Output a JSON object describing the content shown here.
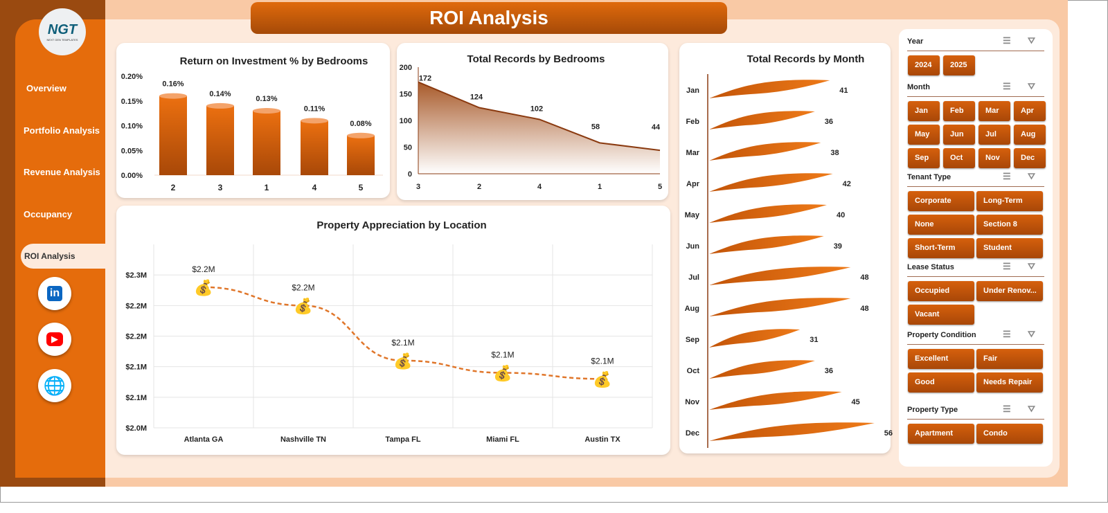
{
  "header": {
    "title": "ROI Analysis"
  },
  "logo": {
    "text": "NGT",
    "sub": "NEXT GEN TEMPLATES"
  },
  "sidebar": {
    "items": [
      {
        "label": "Overview"
      },
      {
        "label": "Portfolio Analysis"
      },
      {
        "label": "Revenue Analysis"
      },
      {
        "label": "Occupancy"
      },
      {
        "label": "ROI Analysis",
        "active": true
      }
    ],
    "social": [
      {
        "icon": "linkedin-icon",
        "label": "in",
        "color": "#0a66c2"
      },
      {
        "icon": "youtube-icon",
        "label": "▶",
        "color": "#ff0000"
      },
      {
        "icon": "globe-icon",
        "label": "🌐",
        "color": "#1e88e5"
      }
    ]
  },
  "colors": {
    "accent": "#e56c0c",
    "dark": "#9a4a10"
  },
  "chart_data": [
    {
      "type": "bar",
      "title": "Return on Investment % by Bedrooms",
      "categories": [
        "2",
        "3",
        "1",
        "4",
        "5"
      ],
      "values": [
        0.16,
        0.14,
        0.13,
        0.11,
        0.08
      ],
      "labels": [
        "0.16%",
        "0.14%",
        "0.13%",
        "0.11%",
        "0.08%"
      ],
      "yticks": [
        "0.00%",
        "0.05%",
        "0.10%",
        "0.15%",
        "0.20%"
      ],
      "ylim": [
        0,
        0.2
      ]
    },
    {
      "type": "area",
      "title": "Total Records by Bedrooms",
      "categories": [
        "3",
        "2",
        "4",
        "1",
        "5"
      ],
      "values": [
        172,
        124,
        102,
        58,
        44
      ],
      "yticks": [
        "0",
        "50",
        "100",
        "150",
        "200"
      ],
      "ylim": [
        0,
        200
      ]
    },
    {
      "type": "line",
      "title": "Property Appreciation by Location",
      "categories": [
        "Atlanta GA",
        "Nashville TN",
        "Tampa FL",
        "Miami FL",
        "Austin TX"
      ],
      "values": [
        2.23,
        2.2,
        2.11,
        2.09,
        2.08
      ],
      "labels": [
        "$2.2M",
        "$2.2M",
        "$2.1M",
        "$2.1M",
        "$2.1M"
      ],
      "yticks": [
        "$2.0M",
        "$2.1M",
        "$2.1M",
        "$2.2M",
        "$2.2M",
        "$2.3M"
      ],
      "ylim": [
        2.0,
        2.3
      ],
      "grid": true,
      "marker": "money-bag-icon"
    },
    {
      "type": "bar",
      "orientation": "horizontal",
      "title": "Total Records by Month",
      "categories": [
        "Jan",
        "Feb",
        "Mar",
        "Apr",
        "May",
        "Jun",
        "Jul",
        "Aug",
        "Sep",
        "Oct",
        "Nov",
        "Dec"
      ],
      "values": [
        41,
        36,
        38,
        42,
        40,
        39,
        48,
        48,
        31,
        36,
        45,
        56
      ]
    }
  ],
  "slicers": [
    {
      "title": "Year",
      "items": [
        "2024",
        "2025"
      ],
      "cols": 4
    },
    {
      "title": "Month",
      "items": [
        "Jan",
        "Feb",
        "Mar",
        "Apr",
        "May",
        "Jun",
        "Jul",
        "Aug",
        "Sep",
        "Oct",
        "Nov",
        "Dec"
      ],
      "cols": 4
    },
    {
      "title": "Tenant Type",
      "items": [
        "Corporate",
        "Long-Term",
        "None",
        "Section 8",
        "Short-Term",
        "Student"
      ],
      "cols": 2
    },
    {
      "title": "Lease Status",
      "items": [
        "Occupied",
        "Under Renov...",
        "Vacant"
      ],
      "cols": 2
    },
    {
      "title": "Property Condition",
      "items": [
        "Excellent",
        "Fair",
        "Good",
        "Needs Repair"
      ],
      "cols": 2
    },
    {
      "title": "Property Type",
      "items": [
        "Apartment",
        "Condo"
      ],
      "cols": 2
    }
  ]
}
